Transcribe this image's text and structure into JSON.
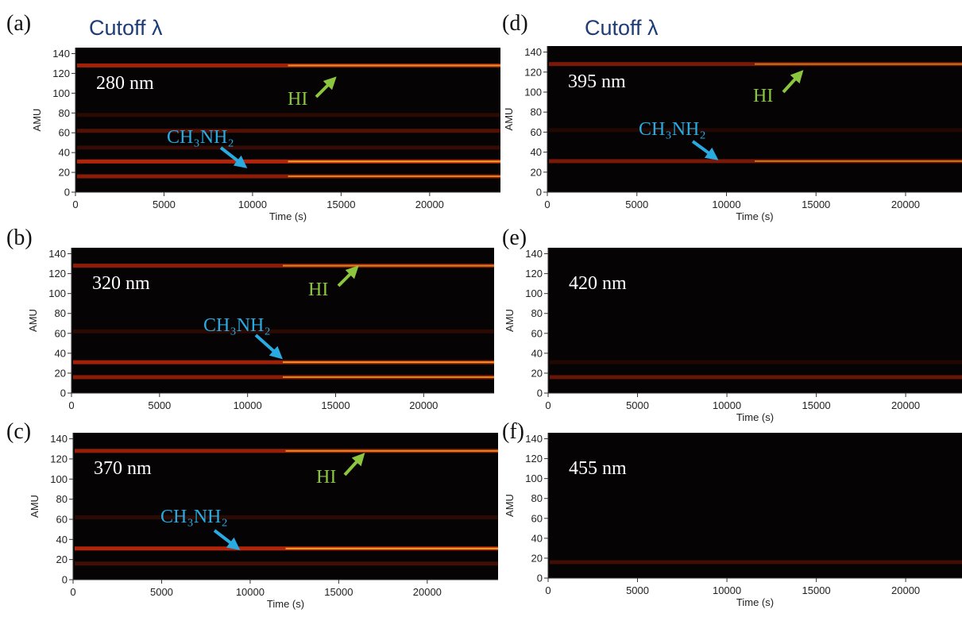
{
  "chart_data": [
    {
      "type": "heatmap",
      "panel": "(a)",
      "heading": "Cutoff λ",
      "annotations": {
        "wavelength": "280 nm",
        "hi": "HI",
        "ch3nh2": "CH₃NH₂"
      },
      "xlabel": "Time (s)",
      "ylabel": "AMU",
      "xlim": [
        0,
        24000
      ],
      "ylim": [
        0,
        146
      ],
      "xticks": [
        0,
        5000,
        10000,
        15000,
        20000
      ],
      "yticks": [
        0,
        20,
        40,
        60,
        80,
        100,
        120,
        140
      ],
      "bands": [
        {
          "amu": 128,
          "intensity": 0.8
        },
        {
          "amu": 78,
          "intensity": 0.2
        },
        {
          "amu": 62,
          "intensity": 0.4
        },
        {
          "amu": 45,
          "intensity": 0.25
        },
        {
          "amu": 31,
          "intensity": 0.9
        },
        {
          "amu": 16,
          "intensity": 0.7
        }
      ]
    },
    {
      "type": "heatmap",
      "panel": "(b)",
      "annotations": {
        "wavelength": "320 nm",
        "hi": "HI",
        "ch3nh2": "CH₃NH₂"
      },
      "ylabel": "AMU",
      "xlim": [
        0,
        24000
      ],
      "ylim": [
        0,
        146
      ],
      "xticks": [
        0,
        5000,
        10000,
        15000,
        20000
      ],
      "yticks": [
        0,
        20,
        40,
        60,
        80,
        100,
        120,
        140
      ],
      "bands": [
        {
          "amu": 128,
          "intensity": 0.7
        },
        {
          "amu": 62,
          "intensity": 0.2
        },
        {
          "amu": 31,
          "intensity": 0.8
        },
        {
          "amu": 16,
          "intensity": 0.7
        }
      ]
    },
    {
      "type": "heatmap",
      "panel": "(c)",
      "annotations": {
        "wavelength": "370 nm",
        "hi": "HI",
        "ch3nh2": "CH₃NH₂"
      },
      "xlabel": "Time (s)",
      "ylabel": "AMU",
      "xlim": [
        0,
        24000
      ],
      "ylim": [
        0,
        146
      ],
      "xticks": [
        0,
        5000,
        10000,
        15000,
        20000
      ],
      "yticks": [
        0,
        20,
        40,
        60,
        80,
        100,
        120,
        140
      ],
      "bands": [
        {
          "amu": 128,
          "intensity": 0.75
        },
        {
          "amu": 62,
          "intensity": 0.2
        },
        {
          "amu": 31,
          "intensity": 0.9
        },
        {
          "amu": 16,
          "intensity": 0.3
        }
      ]
    },
    {
      "type": "heatmap",
      "panel": "(d)",
      "heading": "Cutoff λ",
      "annotations": {
        "wavelength": "395 nm",
        "hi": "HI",
        "ch3nh2": "CH₃NH₂"
      },
      "xlabel": "Time (s)",
      "ylabel": "AMU",
      "xlim": [
        0,
        23150
      ],
      "ylim": [
        0,
        146
      ],
      "xticks": [
        0,
        5000,
        10000,
        15000,
        20000
      ],
      "yticks": [
        0,
        20,
        40,
        60,
        80,
        100,
        120,
        140
      ],
      "bands": [
        {
          "amu": 128,
          "intensity": 0.6
        },
        {
          "amu": 62,
          "intensity": 0.15
        },
        {
          "amu": 31,
          "intensity": 0.6
        }
      ]
    },
    {
      "type": "heatmap",
      "panel": "(e)",
      "annotations": {
        "wavelength": "420 nm"
      },
      "xlabel": "Time (s)",
      "ylabel": "AMU",
      "xlim": [
        0,
        23150
      ],
      "ylim": [
        0,
        146
      ],
      "xticks": [
        0,
        5000,
        10000,
        15000,
        20000
      ],
      "yticks": [
        0,
        20,
        40,
        60,
        80,
        100,
        120,
        140
      ],
      "bands": [
        {
          "amu": 31,
          "intensity": 0.15
        },
        {
          "amu": 16,
          "intensity": 0.5
        }
      ]
    },
    {
      "type": "heatmap",
      "panel": "(f)",
      "annotations": {
        "wavelength": "455 nm"
      },
      "xlabel": "Time (s)",
      "ylabel": "AMU",
      "xlim": [
        0,
        23150
      ],
      "ylim": [
        0,
        146
      ],
      "xticks": [
        0,
        5000,
        10000,
        15000,
        20000
      ],
      "yticks": [
        0,
        20,
        40,
        60,
        80,
        100,
        120,
        140
      ],
      "bands": [
        {
          "amu": 16,
          "intensity": 0.3
        }
      ]
    }
  ]
}
